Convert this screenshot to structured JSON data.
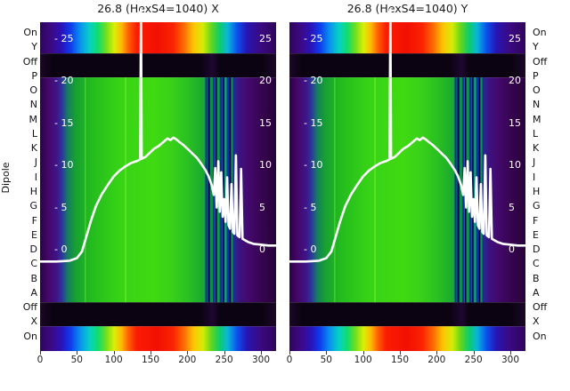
{
  "titles": {
    "left": "26.8 (HexS4=1040) X",
    "right": "26.8 (HexS4=1040) Y"
  },
  "y_axis": {
    "axis_label": "Dipole",
    "row_labels": [
      "On",
      "Y",
      "Off",
      "P",
      "O",
      "N",
      "M",
      "L",
      "K",
      "J",
      "I",
      "H",
      "G",
      "F",
      "E",
      "D",
      "C",
      "B",
      "A",
      "Off",
      "X",
      "On"
    ]
  },
  "x_axis": {
    "ticks": [
      0,
      50,
      100,
      150,
      200,
      250,
      300
    ]
  },
  "value_axis": {
    "ticks": [
      25,
      20,
      15,
      10,
      5,
      0
    ],
    "left_prefix": "- "
  },
  "chart_data": {
    "type": "heatmap",
    "subplots": [
      "26.8 (HexS4=1040) X",
      "26.8 (HexS4=1040) Y"
    ],
    "x_range": [
      0,
      320
    ],
    "rows": [
      "On",
      "Y",
      "Off",
      "P",
      "O",
      "N",
      "M",
      "L",
      "K",
      "J",
      "I",
      "H",
      "G",
      "F",
      "E",
      "D",
      "C",
      "B",
      "A",
      "Off",
      "X",
      "On"
    ],
    "value_scale": {
      "zero_frac": 0.692,
      "unit_frac": 0.02564,
      "tick_values": [
        25,
        20,
        15,
        10,
        5,
        0
      ]
    },
    "bands": [
      {
        "name": "on-top",
        "from": 0.0,
        "to": 0.095,
        "fill": "rainbow"
      },
      {
        "name": "off-top",
        "from": 0.095,
        "to": 0.168,
        "fill": "offband"
      },
      {
        "name": "main",
        "from": 0.168,
        "to": 0.852,
        "fill": "main"
      },
      {
        "name": "off-bottom",
        "from": 0.852,
        "to": 0.925,
        "fill": "offband"
      },
      {
        "name": "on-bottom",
        "from": 0.925,
        "to": 1.0,
        "fill": "rainbow"
      }
    ],
    "gradients": {
      "main": [
        [
          0.0,
          "#2a0345"
        ],
        [
          0.035,
          "#44076a"
        ],
        [
          0.07,
          "#3f1488"
        ],
        [
          0.095,
          "#2a3a9c"
        ],
        [
          0.115,
          "#157a62"
        ],
        [
          0.15,
          "#17a032"
        ],
        [
          0.22,
          "#24bc1e"
        ],
        [
          0.33,
          "#36d216"
        ],
        [
          0.48,
          "#40da12"
        ],
        [
          0.56,
          "#38d019"
        ],
        [
          0.64,
          "#27bc24"
        ],
        [
          0.69,
          "#1aaa30"
        ],
        [
          0.72,
          "#12964a"
        ],
        [
          0.76,
          "#0f7e55"
        ],
        [
          0.79,
          "#14519c"
        ],
        [
          0.82,
          "#2a2a8e"
        ],
        [
          0.845,
          "#3c1380"
        ],
        [
          0.88,
          "#44096e"
        ],
        [
          0.94,
          "#36044f"
        ],
        [
          1.0,
          "#260339"
        ]
      ],
      "rainbow": [
        [
          0.0,
          "#30045a"
        ],
        [
          0.05,
          "#3c0a88"
        ],
        [
          0.09,
          "#2a12b8"
        ],
        [
          0.13,
          "#0d3cee"
        ],
        [
          0.17,
          "#0a92ee"
        ],
        [
          0.21,
          "#06d2c4"
        ],
        [
          0.245,
          "#10dc6e"
        ],
        [
          0.28,
          "#72de1c"
        ],
        [
          0.315,
          "#dcee06"
        ],
        [
          0.345,
          "#ffb804"
        ],
        [
          0.375,
          "#ff5e02"
        ],
        [
          0.41,
          "#fa1c02"
        ],
        [
          0.5,
          "#f21002"
        ],
        [
          0.565,
          "#fa2402"
        ],
        [
          0.61,
          "#ff6c02"
        ],
        [
          0.65,
          "#ffc404"
        ],
        [
          0.69,
          "#d4ec06"
        ],
        [
          0.725,
          "#64d61e"
        ],
        [
          0.76,
          "#0ecc6a"
        ],
        [
          0.795,
          "#0ab6da"
        ],
        [
          0.835,
          "#0c50ee"
        ],
        [
          0.875,
          "#2616b4"
        ],
        [
          0.93,
          "#3a0a84"
        ],
        [
          1.0,
          "#30045a"
        ]
      ],
      "offband": [
        [
          0.0,
          "#1c0628"
        ],
        [
          0.05,
          "#0c0312"
        ],
        [
          0.68,
          "#0c0312"
        ],
        [
          0.73,
          "#1e0730"
        ],
        [
          0.76,
          "#0c0312"
        ],
        [
          0.94,
          "#0c0312"
        ],
        [
          1.0,
          "#1c0628"
        ]
      ]
    },
    "stripes": [
      [
        0.19,
        0.004,
        "#52e01c"
      ],
      [
        0.36,
        0.005,
        "#66ee22"
      ],
      [
        0.7,
        0.008,
        "#0c2ba0"
      ],
      [
        0.711,
        0.009,
        "#041055"
      ],
      [
        0.723,
        0.006,
        "#0a9046"
      ],
      [
        0.732,
        0.008,
        "#0c30aa"
      ],
      [
        0.743,
        0.006,
        "#020a3c"
      ],
      [
        0.752,
        0.007,
        "#0aa040"
      ],
      [
        0.762,
        0.009,
        "#0b2ba0"
      ],
      [
        0.774,
        0.006,
        "#041052"
      ],
      [
        0.783,
        0.007,
        "#0ab64c"
      ],
      [
        0.792,
        0.008,
        "#0c30aa"
      ],
      [
        0.802,
        0.006,
        "#020a3c"
      ],
      [
        0.81,
        0.007,
        "#138e54"
      ],
      [
        0.819,
        0.009,
        "#202a92"
      ]
    ],
    "curve": {
      "color": "#ffffff",
      "width": 2.6,
      "points": [
        [
          0,
          -1.4
        ],
        [
          22,
          -1.4
        ],
        [
          40,
          -1.3
        ],
        [
          50,
          -1.0
        ],
        [
          57,
          -0.2
        ],
        [
          63,
          1.6
        ],
        [
          69,
          3.4
        ],
        [
          76,
          5.2
        ],
        [
          84,
          6.6
        ],
        [
          92,
          7.7
        ],
        [
          100,
          8.7
        ],
        [
          108,
          9.4
        ],
        [
          116,
          9.9
        ],
        [
          124,
          10.3
        ],
        [
          131,
          10.5
        ],
        [
          136,
          10.7
        ],
        [
          137,
          28.5
        ],
        [
          138,
          10.8
        ],
        [
          143,
          11.0
        ],
        [
          149,
          11.5
        ],
        [
          155,
          12.0
        ],
        [
          161,
          12.3
        ],
        [
          165,
          12.6
        ],
        [
          169,
          12.9
        ],
        [
          173,
          13.2
        ],
        [
          177,
          13.0
        ],
        [
          181,
          13.3
        ],
        [
          185,
          13.1
        ],
        [
          189,
          12.8
        ],
        [
          195,
          12.4
        ],
        [
          201,
          11.9
        ],
        [
          207,
          11.4
        ],
        [
          213,
          10.9
        ],
        [
          219,
          10.2
        ],
        [
          225,
          9.4
        ],
        [
          229,
          8.7
        ],
        [
          233,
          7.7
        ],
        [
          236,
          6.5
        ],
        [
          238,
          9.7
        ],
        [
          240,
          5.0
        ],
        [
          242,
          10.5
        ],
        [
          244,
          4.5
        ],
        [
          246,
          9.2
        ],
        [
          248,
          3.9
        ],
        [
          250,
          6.0
        ],
        [
          252,
          3.3
        ],
        [
          254,
          8.6
        ],
        [
          256,
          2.9
        ],
        [
          258,
          2.5
        ],
        [
          260,
          7.8
        ],
        [
          262,
          2.1
        ],
        [
          264,
          1.9
        ],
        [
          266,
          11.2
        ],
        [
          268,
          1.7
        ],
        [
          271,
          1.5
        ],
        [
          273,
          9.6
        ],
        [
          275,
          1.3
        ],
        [
          279,
          1.1
        ],
        [
          283,
          0.9
        ],
        [
          290,
          0.7
        ],
        [
          300,
          0.6
        ],
        [
          310,
          0.5
        ],
        [
          320,
          0.5
        ]
      ]
    }
  }
}
